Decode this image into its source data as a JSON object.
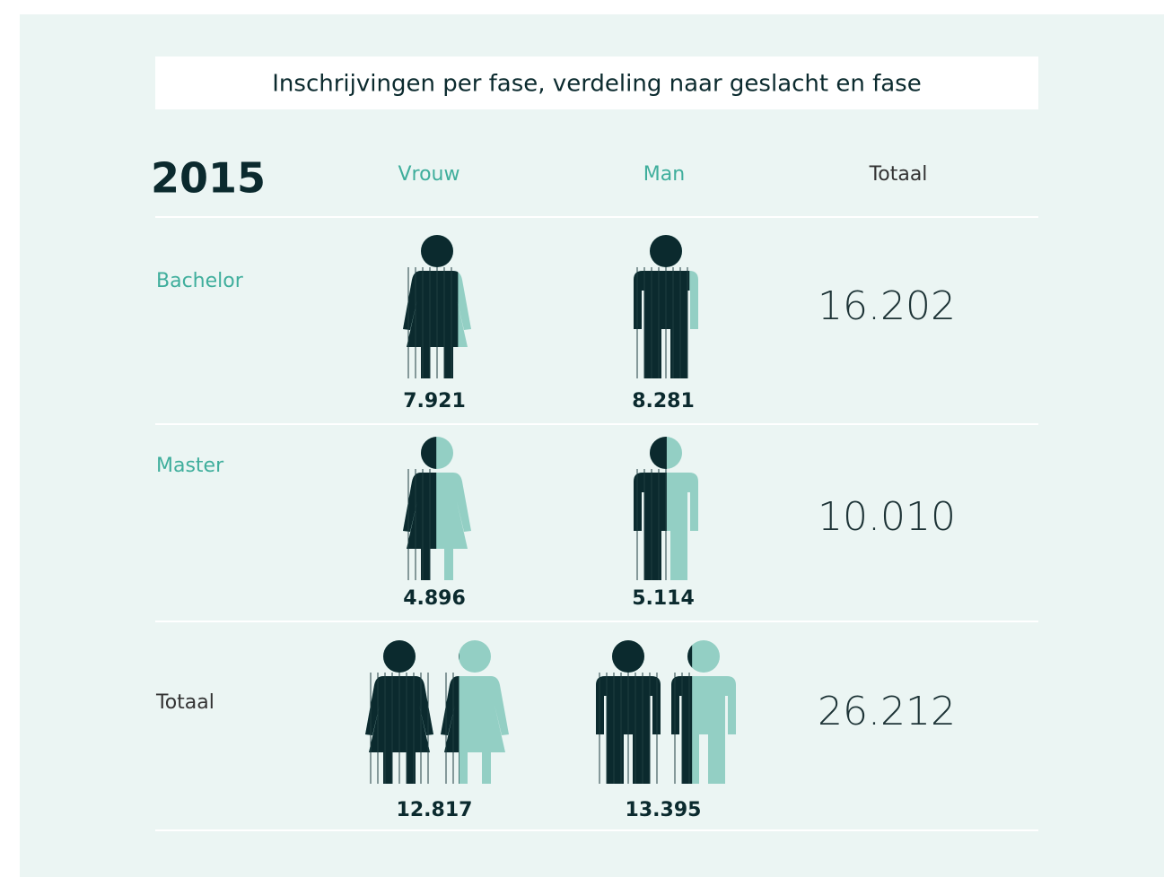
{
  "title": "Inschrijvingen per fase, verdeling naar geslacht en fase",
  "year": "2015",
  "columns": [
    "Vrouw",
    "Man",
    "Totaal"
  ],
  "rows": [
    {
      "label": "Bachelor",
      "vrouw": "7.921",
      "man": "8.281",
      "totaal": "16.202"
    },
    {
      "label": "Master",
      "vrouw": "4.896",
      "man": "5.114",
      "totaal": "10.010"
    },
    {
      "label": "Totaal",
      "vrouw": "12.817",
      "man": "13.395",
      "totaal": "26.212"
    }
  ]
}
